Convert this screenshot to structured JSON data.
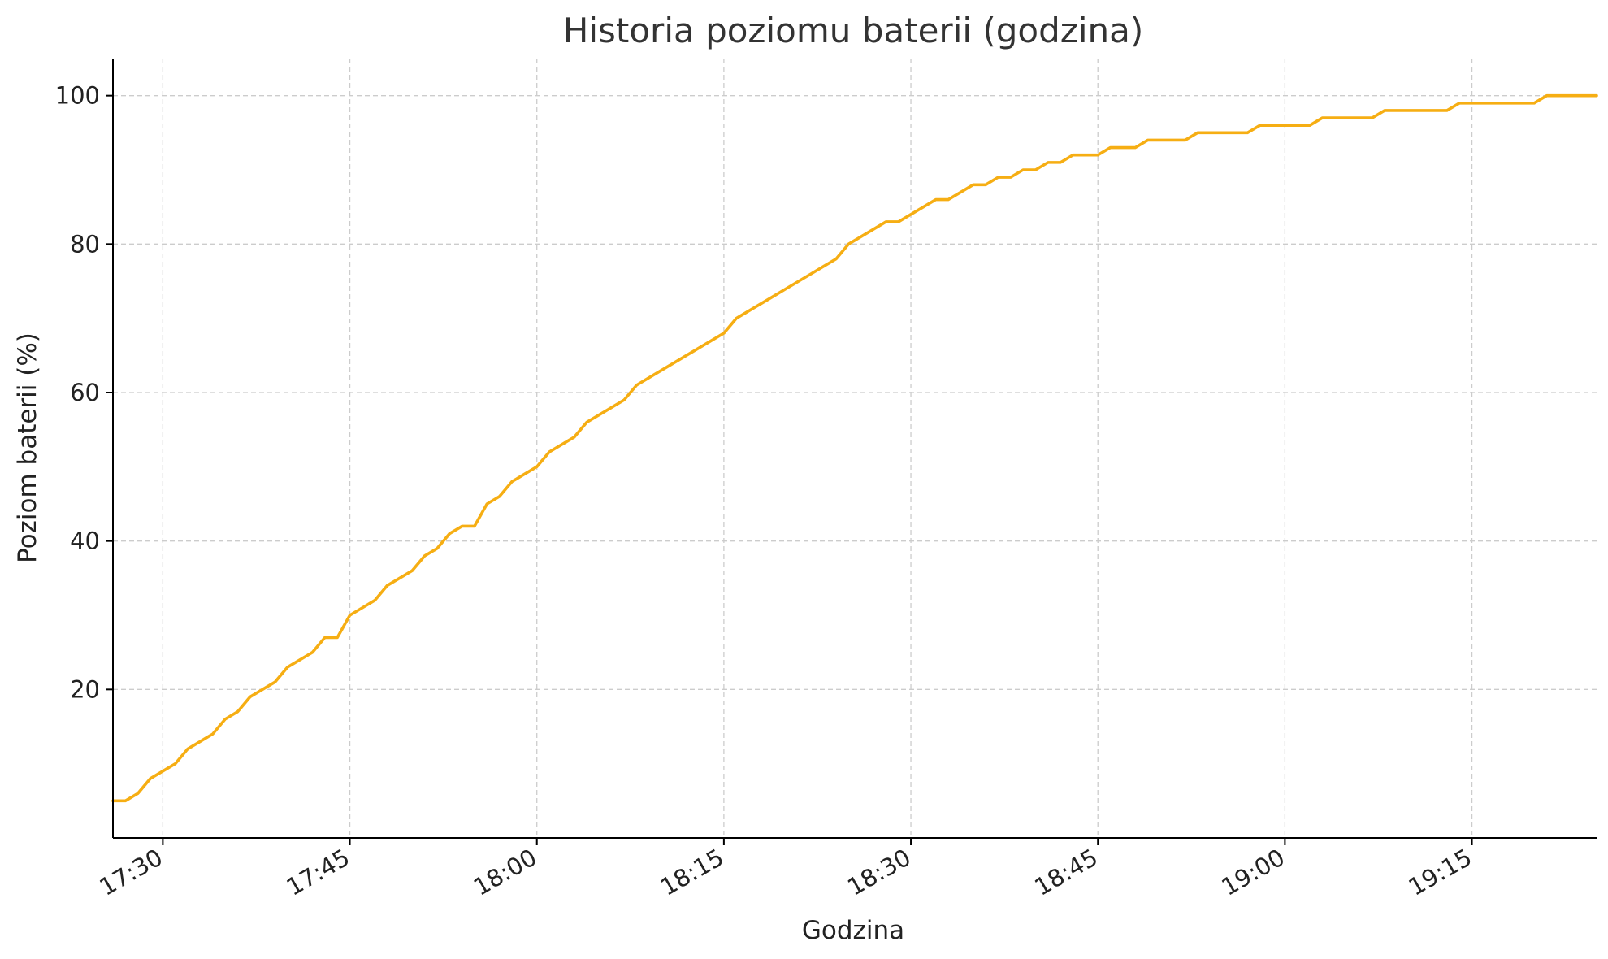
{
  "chart_data": {
    "type": "line",
    "title": "Historia poziomu baterii (godzina)",
    "xlabel": "Godzina",
    "ylabel": "Poziom baterii (%)",
    "x_unit": "time HH:MM",
    "xlim": [
      "17:26",
      "19:25"
    ],
    "ylim": [
      0,
      105
    ],
    "x_ticks": [
      "17:30",
      "17:45",
      "18:00",
      "18:15",
      "18:30",
      "18:45",
      "19:00",
      "19:15"
    ],
    "y_ticks": [
      20,
      40,
      60,
      80,
      100
    ],
    "grid": true,
    "color": "#F6AE13",
    "series": [
      {
        "name": "",
        "points": [
          [
            "17:26",
            5
          ],
          [
            "17:27",
            5
          ],
          [
            "17:28",
            6
          ],
          [
            "17:29",
            8
          ],
          [
            "17:30",
            9
          ],
          [
            "17:31",
            10
          ],
          [
            "17:32",
            12
          ],
          [
            "17:33",
            13
          ],
          [
            "17:34",
            14
          ],
          [
            "17:35",
            16
          ],
          [
            "17:36",
            17
          ],
          [
            "17:37",
            19
          ],
          [
            "17:38",
            20
          ],
          [
            "17:39",
            21
          ],
          [
            "17:40",
            23
          ],
          [
            "17:41",
            24
          ],
          [
            "17:42",
            25
          ],
          [
            "17:43",
            27
          ],
          [
            "17:44",
            27
          ],
          [
            "17:45",
            30
          ],
          [
            "17:46",
            31
          ],
          [
            "17:47",
            32
          ],
          [
            "17:48",
            34
          ],
          [
            "17:49",
            35
          ],
          [
            "17:50",
            36
          ],
          [
            "17:51",
            38
          ],
          [
            "17:52",
            39
          ],
          [
            "17:53",
            41
          ],
          [
            "17:54",
            42
          ],
          [
            "17:55",
            42
          ],
          [
            "17:56",
            45
          ],
          [
            "17:57",
            46
          ],
          [
            "17:58",
            48
          ],
          [
            "17:59",
            49
          ],
          [
            "18:00",
            50
          ],
          [
            "18:01",
            52
          ],
          [
            "18:02",
            53
          ],
          [
            "18:03",
            54
          ],
          [
            "18:04",
            56
          ],
          [
            "18:05",
            57
          ],
          [
            "18:06",
            58
          ],
          [
            "18:07",
            59
          ],
          [
            "18:08",
            61
          ],
          [
            "18:09",
            62
          ],
          [
            "18:10",
            63
          ],
          [
            "18:11",
            64
          ],
          [
            "18:12",
            65
          ],
          [
            "18:13",
            66
          ],
          [
            "18:14",
            67
          ],
          [
            "18:15",
            68
          ],
          [
            "18:16",
            70
          ],
          [
            "18:17",
            71
          ],
          [
            "18:18",
            72
          ],
          [
            "18:19",
            73
          ],
          [
            "18:20",
            74
          ],
          [
            "18:21",
            75
          ],
          [
            "18:22",
            76
          ],
          [
            "18:23",
            77
          ],
          [
            "18:24",
            78
          ],
          [
            "18:25",
            80
          ],
          [
            "18:26",
            81
          ],
          [
            "18:27",
            82
          ],
          [
            "18:28",
            83
          ],
          [
            "18:29",
            83
          ],
          [
            "18:30",
            84
          ],
          [
            "18:31",
            85
          ],
          [
            "18:32",
            86
          ],
          [
            "18:33",
            86
          ],
          [
            "18:34",
            87
          ],
          [
            "18:35",
            88
          ],
          [
            "18:36",
            88
          ],
          [
            "18:37",
            89
          ],
          [
            "18:38",
            89
          ],
          [
            "18:39",
            90
          ],
          [
            "18:40",
            90
          ],
          [
            "18:41",
            91
          ],
          [
            "18:42",
            91
          ],
          [
            "18:43",
            92
          ],
          [
            "18:44",
            92
          ],
          [
            "18:45",
            92
          ],
          [
            "18:46",
            93
          ],
          [
            "18:47",
            93
          ],
          [
            "18:48",
            93
          ],
          [
            "18:49",
            94
          ],
          [
            "18:50",
            94
          ],
          [
            "18:51",
            94
          ],
          [
            "18:52",
            94
          ],
          [
            "18:53",
            95
          ],
          [
            "18:54",
            95
          ],
          [
            "18:55",
            95
          ],
          [
            "18:56",
            95
          ],
          [
            "18:57",
            95
          ],
          [
            "18:58",
            96
          ],
          [
            "18:59",
            96
          ],
          [
            "19:00",
            96
          ],
          [
            "19:01",
            96
          ],
          [
            "19:02",
            96
          ],
          [
            "19:03",
            97
          ],
          [
            "19:04",
            97
          ],
          [
            "19:05",
            97
          ],
          [
            "19:06",
            97
          ],
          [
            "19:07",
            97
          ],
          [
            "19:08",
            98
          ],
          [
            "19:09",
            98
          ],
          [
            "19:10",
            98
          ],
          [
            "19:11",
            98
          ],
          [
            "19:12",
            98
          ],
          [
            "19:13",
            98
          ],
          [
            "19:14",
            99
          ],
          [
            "19:15",
            99
          ],
          [
            "19:16",
            99
          ],
          [
            "19:17",
            99
          ],
          [
            "19:18",
            99
          ],
          [
            "19:19",
            99
          ],
          [
            "19:20",
            99
          ],
          [
            "19:21",
            100
          ],
          [
            "19:22",
            100
          ],
          [
            "19:23",
            100
          ],
          [
            "19:24",
            100
          ],
          [
            "19:25",
            100
          ]
        ]
      }
    ]
  }
}
